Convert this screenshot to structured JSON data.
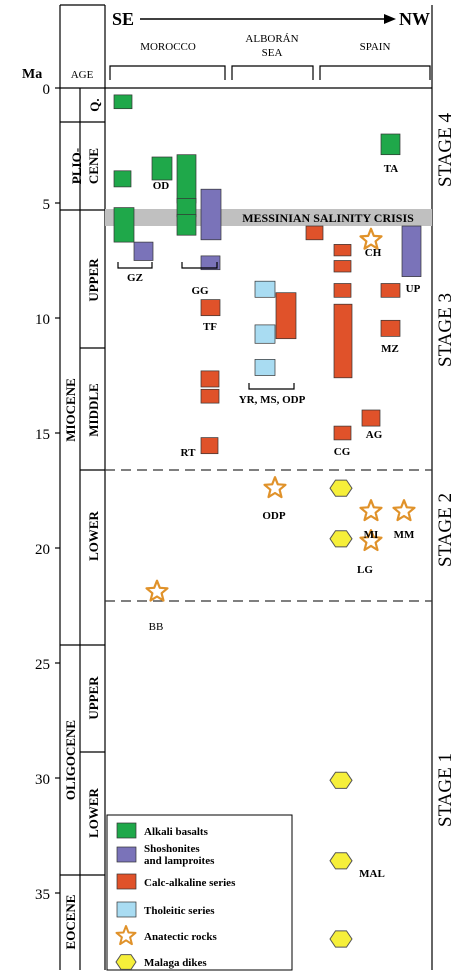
{
  "axis": {
    "label": "Ma",
    "ticks": [
      "0",
      "5",
      "10",
      "15",
      "20",
      "25",
      "30",
      "35"
    ]
  },
  "header": {
    "direction_left": "SE",
    "direction_right": "NW",
    "regions": [
      "MOROCCO",
      "ALBORÁN",
      "SEA",
      "SPAIN"
    ],
    "age": "AGE"
  },
  "epochs": {
    "quaternary": "Q.",
    "pliocene": "PLIO-",
    "pliocene2": "CENE",
    "miocene": "MIOCENE",
    "oligocene": "OLIGOCENE",
    "eocene": "EOCENE",
    "upper": "UPPER",
    "middle": "MIDDLE",
    "lower": "LOWER",
    "olig_upper": "UPPER",
    "olig_lower": "LOWER"
  },
  "stages": [
    "STAGE 4",
    "STAGE 3",
    "STAGE 2",
    "STAGE 1"
  ],
  "messinian": "MESSINIAN SALINITY CRISIS",
  "labels": [
    "TA",
    "OD",
    "GZ",
    "GG",
    "CH",
    "UP",
    "TF",
    "MZ",
    "YR, MS, ODP",
    "AG",
    "CG",
    "RT",
    "ODP",
    "MI",
    "MM",
    "LG",
    "BB",
    "MAL"
  ],
  "legend": [
    {
      "label": "Alkali basalts",
      "type": "rect",
      "color": "#1fa84a"
    },
    {
      "label": "Shoshonites",
      "label2": "and lamproites",
      "type": "rect",
      "color": "#7a73b9"
    },
    {
      "label": "Calc-alkaline series",
      "type": "rect",
      "color": "#e0522a"
    },
    {
      "label": "Tholeitic series",
      "type": "rect",
      "color": "#a9dcf2"
    },
    {
      "label": "Anatectic rocks",
      "type": "star",
      "color": "#e0922a"
    },
    {
      "label": "Malaga dikes",
      "type": "hex",
      "color": "#f6ef3a"
    }
  ],
  "colors": {
    "alkali": "#1fa84a",
    "shosho": "#7a73b9",
    "calc": "#e0522a",
    "thol": "#a9dcf2",
    "star": "#e0922a",
    "hex": "#f6ef3a"
  },
  "chart_data": {
    "type": "table",
    "y_unit": "Ma",
    "ylim": [
      0,
      37
    ],
    "alkali_basalts": [
      [
        0.3,
        0.9
      ],
      [
        3.6,
        4.3
      ],
      [
        3.0,
        4.0
      ],
      [
        2.9,
        5.0
      ],
      [
        4.8,
        5.6
      ],
      [
        5.2,
        6.7
      ],
      [
        5.5,
        6.4
      ],
      [
        2.0,
        2.9
      ]
    ],
    "shoshonites": [
      [
        6.7,
        7.5
      ],
      [
        4.4,
        6.6
      ],
      [
        7.3,
        7.9
      ],
      [
        6.0,
        8.2
      ]
    ],
    "calc_alkaline": [
      [
        9.2,
        9.9
      ],
      [
        12.3,
        13.0
      ],
      [
        13.1,
        13.7
      ],
      [
        15.2,
        15.9
      ],
      [
        6.0,
        6.6
      ],
      [
        8.9,
        10.9
      ],
      [
        6.8,
        7.3
      ],
      [
        7.5,
        8.0
      ],
      [
        8.5,
        9.1
      ],
      [
        9.4,
        12.6
      ],
      [
        14.7,
        15.3
      ],
      [
        8.5,
        9.1
      ],
      [
        10.1,
        10.8
      ],
      [
        14.0,
        14.7
      ]
    ],
    "tholeitic": [
      [
        8.4,
        9.1
      ],
      [
        10.3,
        11.1
      ],
      [
        11.8,
        12.5
      ]
    ],
    "anatectic": [
      6.6,
      17.4,
      18.4,
      18.4,
      19.7,
      21.9
    ],
    "malaga_dikes": [
      17.4,
      19.6,
      30.1,
      33.6,
      37.0
    ]
  }
}
